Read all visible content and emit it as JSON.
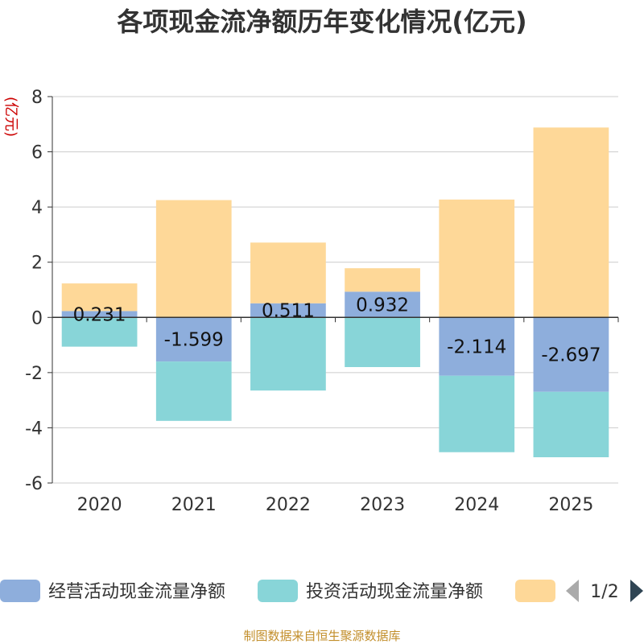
{
  "chart_data": {
    "type": "bar",
    "stacked": true,
    "title": "各项现金流净额历年变化情况(亿元)",
    "ylabel": "(亿元)",
    "xlabel": "",
    "categories": [
      "2020",
      "2021",
      "2022",
      "2023",
      "2024",
      "2025"
    ],
    "ylim": [
      -6,
      8
    ],
    "yticks": [
      "8",
      "6",
      "4",
      "2",
      "0",
      "-2",
      "-4",
      "-6"
    ],
    "grid": true,
    "series": [
      {
        "name": "经营活动现金流量净额",
        "color": "#8eaedc",
        "values": [
          0.231,
          -1.599,
          0.511,
          0.932,
          -2.114,
          -2.697
        ],
        "labels": [
          "0.231",
          "-1.599",
          "0.511",
          "0.932",
          "-2.114",
          "-2.697"
        ]
      },
      {
        "name": "投资活动现金流量净额",
        "color": "#88d5d8",
        "values": [
          -1.06,
          -2.15,
          -2.65,
          -1.8,
          -2.77,
          -2.37
        ]
      },
      {
        "name": "",
        "color": "#fed898",
        "values": [
          1.0,
          4.25,
          2.2,
          0.85,
          4.27,
          6.88
        ]
      }
    ],
    "legend": {
      "position": "bottom",
      "page": "1/2"
    }
  },
  "source": "制图数据来自恒生聚源数据库"
}
